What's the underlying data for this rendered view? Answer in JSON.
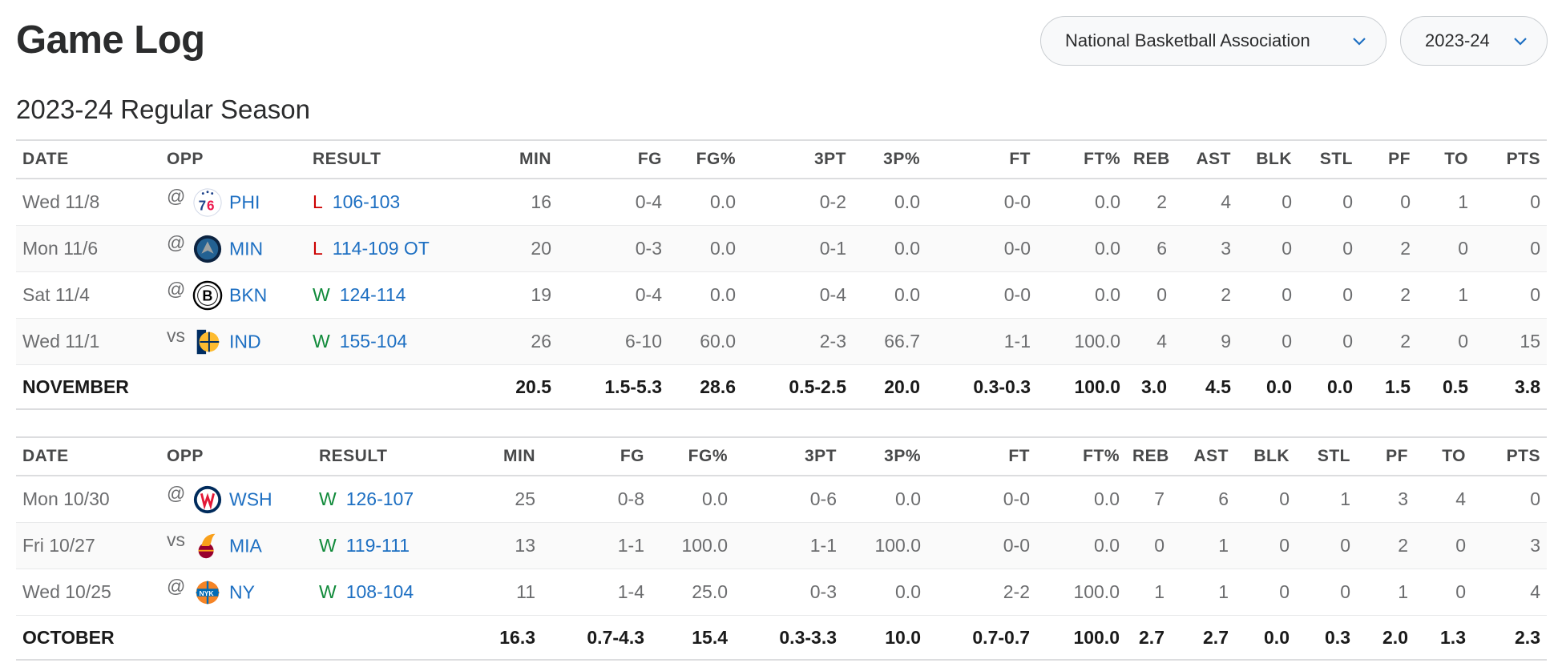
{
  "header": {
    "title": "Game Log",
    "league_select": "National Basketball Association",
    "season_select": "2023-24"
  },
  "season_title": "2023-24 Regular Season",
  "columns": [
    "DATE",
    "OPP",
    "RESULT",
    "MIN",
    "FG",
    "FG%",
    "3PT",
    "3P%",
    "FT",
    "FT%",
    "REB",
    "AST",
    "BLK",
    "STL",
    "PF",
    "TO",
    "PTS"
  ],
  "months": [
    {
      "games": [
        {
          "date": "Wed 11/8",
          "ha": "@",
          "opp": "PHI",
          "logo": "philadelphia-76ers-logo",
          "wl": "L",
          "score": "106-103",
          "min": "16",
          "fg": "0-4",
          "fgp": "0.0",
          "tpt": "0-2",
          "tpp": "0.0",
          "ft": "0-0",
          "ftp": "0.0",
          "reb": "2",
          "ast": "4",
          "blk": "0",
          "stl": "0",
          "pf": "0",
          "to": "1",
          "pts": "0"
        },
        {
          "date": "Mon 11/6",
          "ha": "@",
          "opp": "MIN",
          "logo": "minnesota-timberwolves-logo",
          "wl": "L",
          "score": "114-109 OT",
          "min": "20",
          "fg": "0-3",
          "fgp": "0.0",
          "tpt": "0-1",
          "tpp": "0.0",
          "ft": "0-0",
          "ftp": "0.0",
          "reb": "6",
          "ast": "3",
          "blk": "0",
          "stl": "0",
          "pf": "2",
          "to": "0",
          "pts": "0"
        },
        {
          "date": "Sat 11/4",
          "ha": "@",
          "opp": "BKN",
          "logo": "brooklyn-nets-logo",
          "wl": "W",
          "score": "124-114",
          "min": "19",
          "fg": "0-4",
          "fgp": "0.0",
          "tpt": "0-4",
          "tpp": "0.0",
          "ft": "0-0",
          "ftp": "0.0",
          "reb": "0",
          "ast": "2",
          "blk": "0",
          "stl": "0",
          "pf": "2",
          "to": "1",
          "pts": "0"
        },
        {
          "date": "Wed 11/1",
          "ha": "vs",
          "opp": "IND",
          "logo": "indiana-pacers-logo",
          "wl": "W",
          "score": "155-104",
          "min": "26",
          "fg": "6-10",
          "fgp": "60.0",
          "tpt": "2-3",
          "tpp": "66.7",
          "ft": "1-1",
          "ftp": "100.0",
          "reb": "4",
          "ast": "9",
          "blk": "0",
          "stl": "0",
          "pf": "2",
          "to": "0",
          "pts": "15"
        }
      ],
      "total": {
        "label": "NOVEMBER",
        "min": "20.5",
        "fg": "1.5-5.3",
        "fgp": "28.6",
        "tpt": "0.5-2.5",
        "tpp": "20.0",
        "ft": "0.3-0.3",
        "ftp": "100.0",
        "reb": "3.0",
        "ast": "4.5",
        "blk": "0.0",
        "stl": "0.0",
        "pf": "1.5",
        "to": "0.5",
        "pts": "3.8"
      }
    },
    {
      "games": [
        {
          "date": "Mon 10/30",
          "ha": "@",
          "opp": "WSH",
          "logo": "washington-wizards-logo",
          "wl": "W",
          "score": "126-107",
          "min": "25",
          "fg": "0-8",
          "fgp": "0.0",
          "tpt": "0-6",
          "tpp": "0.0",
          "ft": "0-0",
          "ftp": "0.0",
          "reb": "7",
          "ast": "6",
          "blk": "0",
          "stl": "1",
          "pf": "3",
          "to": "4",
          "pts": "0"
        },
        {
          "date": "Fri 10/27",
          "ha": "vs",
          "opp": "MIA",
          "logo": "miami-heat-logo",
          "wl": "W",
          "score": "119-111",
          "min": "13",
          "fg": "1-1",
          "fgp": "100.0",
          "tpt": "1-1",
          "tpp": "100.0",
          "ft": "0-0",
          "ftp": "0.0",
          "reb": "0",
          "ast": "1",
          "blk": "0",
          "stl": "0",
          "pf": "2",
          "to": "0",
          "pts": "3"
        },
        {
          "date": "Wed 10/25",
          "ha": "@",
          "opp": "NY",
          "logo": "new-york-knicks-logo",
          "wl": "W",
          "score": "108-104",
          "min": "11",
          "fg": "1-4",
          "fgp": "25.0",
          "tpt": "0-3",
          "tpp": "0.0",
          "ft": "2-2",
          "ftp": "100.0",
          "reb": "1",
          "ast": "1",
          "blk": "0",
          "stl": "0",
          "pf": "1",
          "to": "0",
          "pts": "4"
        }
      ],
      "total": {
        "label": "OCTOBER",
        "min": "16.3",
        "fg": "0.7-4.3",
        "fgp": "15.4",
        "tpt": "0.3-3.3",
        "tpp": "10.0",
        "ft": "0.7-0.7",
        "ftp": "100.0",
        "reb": "2.7",
        "ast": "2.7",
        "blk": "0.0",
        "stl": "0.3",
        "pf": "2.0",
        "to": "1.3",
        "pts": "2.3"
      }
    }
  ]
}
